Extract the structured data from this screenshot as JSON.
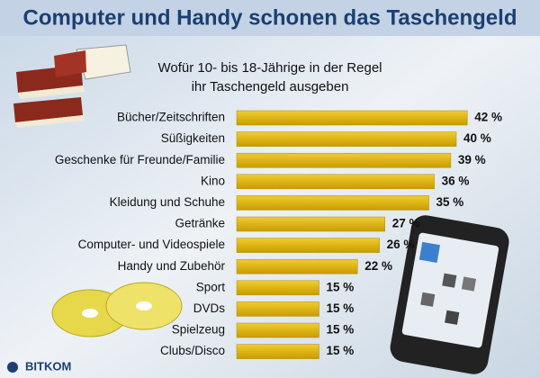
{
  "chart_data": {
    "type": "bar",
    "orientation": "horizontal",
    "title": "Computer und Handy schonen das Taschengeld",
    "subtitle": [
      "Wofür 10- bis 18-Jährige in der Regel",
      "ihr Taschengeld ausgeben"
    ],
    "categories": [
      "Bücher/Zeitschriften",
      "Süßigkeiten",
      "Geschenke für Freunde/Familie",
      "Kino",
      "Kleidung und Schuhe",
      "Getränke",
      "Computer- und Videospiele",
      "Handy und Zubehör",
      "Sport",
      "DVDs",
      "Spielzeug",
      "Clubs/Disco"
    ],
    "values": [
      42,
      40,
      39,
      36,
      35,
      27,
      26,
      22,
      15,
      15,
      15,
      15
    ],
    "value_labels": [
      "42 %",
      "40 %",
      "39 %",
      "36 %",
      "35 %",
      "27 %",
      "26 %",
      "22 %",
      "15 %",
      "15 %",
      "15 %",
      "15 %"
    ],
    "color": "#dcb300",
    "source": "BITKOM"
  }
}
